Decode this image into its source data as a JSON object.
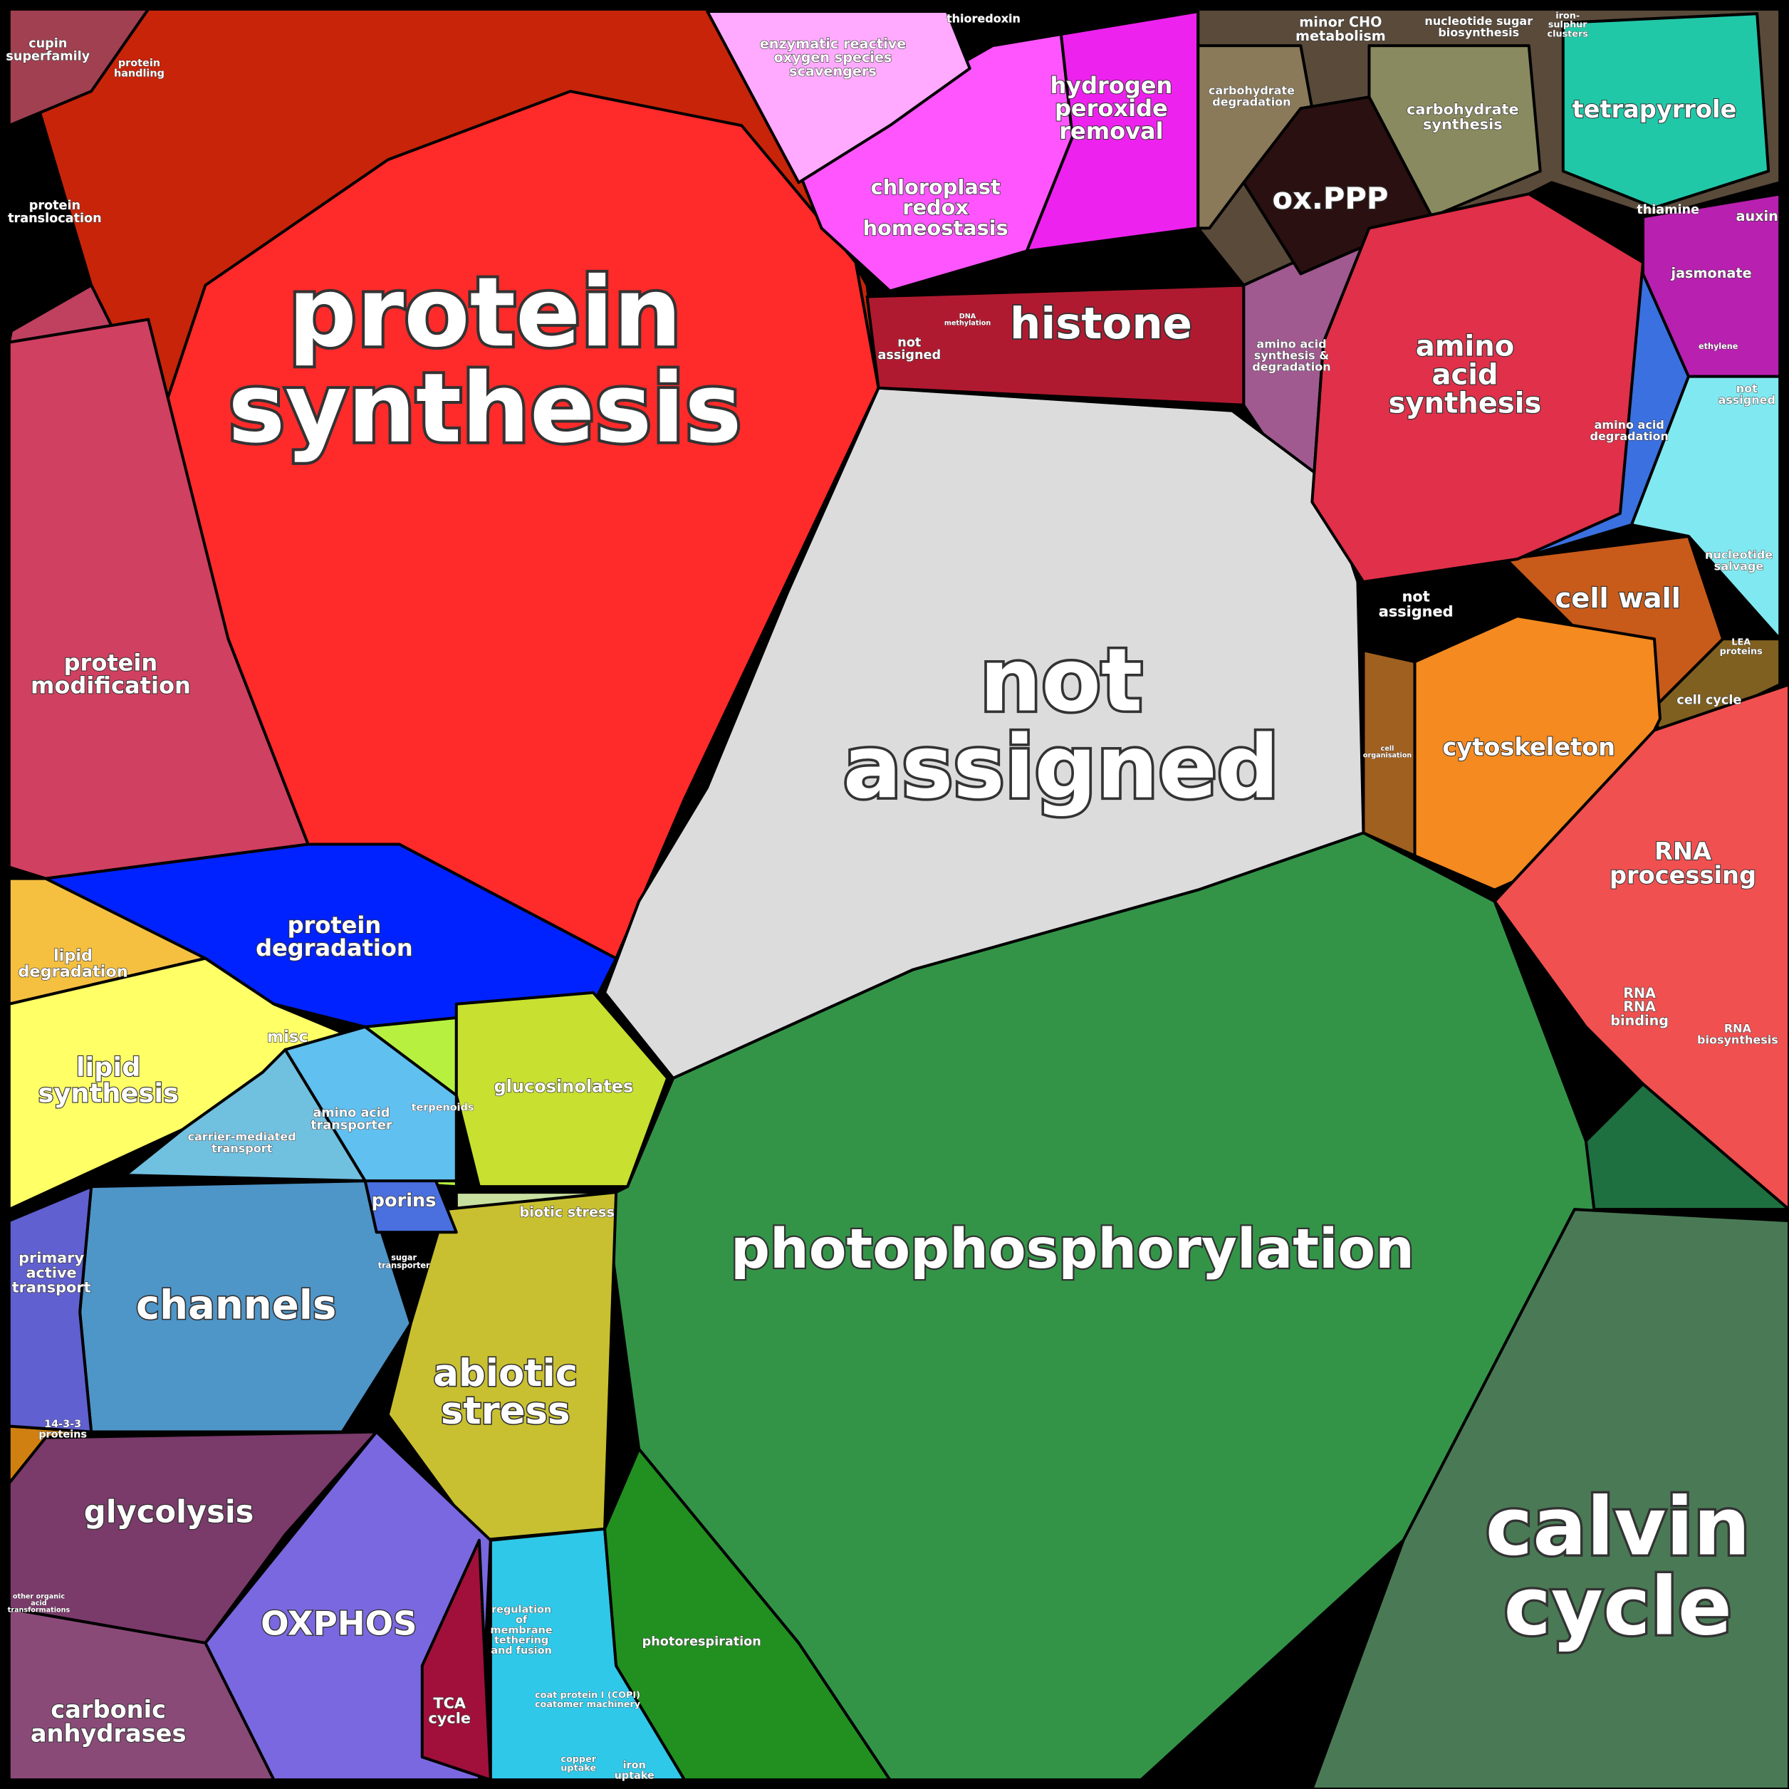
{
  "cells": [
    {
      "label": [
        "protein",
        "synthesis"
      ]
    },
    {
      "label": [
        "not",
        "assigned"
      ]
    },
    {
      "label": [
        "photophosphorylation"
      ]
    },
    {
      "label": [
        "calvin",
        "cycle"
      ]
    },
    {
      "label": [
        "histone"
      ]
    },
    {
      "label": [
        "ox.PPP"
      ]
    },
    {
      "label": [
        "tetrapyrrole"
      ]
    },
    {
      "label": [
        "cell wall"
      ]
    },
    {
      "label": [
        "cytoskeleton"
      ]
    },
    {
      "label": [
        "amino",
        "acid",
        "synthesis"
      ]
    },
    {
      "label": [
        "RNA",
        "processing"
      ]
    },
    {
      "label": [
        "chloroplast",
        "redox",
        "homeostasis"
      ]
    },
    {
      "label": [
        "hydrogen",
        "peroxide",
        "removal"
      ]
    },
    {
      "label": [
        "enzymatic reactive",
        "oxygen species",
        "scavengers"
      ]
    },
    {
      "label": [
        "protein",
        "modification"
      ]
    },
    {
      "label": [
        "protein",
        "degradation"
      ]
    },
    {
      "label": [
        "lipid",
        "degradation"
      ]
    },
    {
      "label": [
        "lipid",
        "synthesis"
      ]
    },
    {
      "label": [
        "channels"
      ]
    },
    {
      "label": [
        "abiotic",
        "stress"
      ]
    },
    {
      "label": [
        "glucosinolates"
      ]
    },
    {
      "label": [
        "glycolysis"
      ]
    },
    {
      "label": [
        "OXPHOS"
      ]
    },
    {
      "label": [
        "carbonic",
        "anhydrases"
      ]
    },
    {
      "label": [
        "photorespiration"
      ]
    },
    {
      "label": [
        "TCA",
        "cycle"
      ]
    },
    {
      "label": [
        "porins"
      ]
    },
    {
      "label": [
        "primary",
        "active",
        "transport"
      ]
    },
    {
      "label": [
        "amino acid",
        "transporter"
      ]
    },
    {
      "label": [
        "carrier-mediated",
        "transport"
      ]
    },
    {
      "label": [
        "misc"
      ]
    },
    {
      "label": [
        "biotic stress"
      ]
    },
    {
      "label": [
        "terpenoids"
      ]
    },
    {
      "label": [
        "thioredoxin"
      ]
    },
    {
      "label": [
        "minor CHO",
        "metabolism"
      ]
    },
    {
      "label": [
        "nucleotide sugar",
        "biosynthesis"
      ]
    },
    {
      "label": [
        "carbohydrate",
        "degradation"
      ]
    },
    {
      "label": [
        "carbohydrate",
        "synthesis"
      ]
    },
    {
      "label": [
        "thiamine"
      ]
    },
    {
      "label": [
        "auxin"
      ]
    },
    {
      "label": [
        "jasmonate"
      ]
    },
    {
      "label": [
        "not",
        "assigned"
      ]
    },
    {
      "label": [
        "amino acid",
        "synthesis &",
        "degradation"
      ]
    },
    {
      "label": [
        "amino acid",
        "degradation"
      ]
    },
    {
      "label": [
        "not",
        "assigned"
      ]
    },
    {
      "label": [
        "nucleotide",
        "salvage"
      ]
    },
    {
      "label": [
        "not",
        "assigned"
      ]
    },
    {
      "label": [
        "cell cycle"
      ]
    },
    {
      "label": [
        "RNA",
        "RNA",
        "binding"
      ]
    },
    {
      "label": [
        "RNA",
        "biosynthesis"
      ]
    },
    {
      "label": [
        "cupin",
        "superfamily"
      ]
    },
    {
      "label": [
        "protein",
        "handling"
      ]
    },
    {
      "label": [
        "protein",
        "translocation"
      ]
    },
    {
      "label": [
        "14-3-3",
        "proteins"
      ]
    },
    {
      "label": [
        "sugar",
        "transporter"
      ]
    },
    {
      "label": [
        "regulation",
        "of",
        "membrane",
        "tethering",
        "and fusion"
      ]
    },
    {
      "label": [
        "coat protein I (COPI)",
        "coatomer machinery"
      ]
    },
    {
      "label": [
        "copper",
        "uptake"
      ]
    },
    {
      "label": [
        "iron",
        "uptake"
      ]
    },
    {
      "label": [
        "iron-",
        "sulphur",
        "clusters"
      ]
    },
    {
      "label": [
        "LEA",
        "proteins"
      ]
    },
    {
      "label": [
        "ethylene"
      ]
    },
    {
      "label": [
        "cell",
        "organisation"
      ]
    },
    {
      "label": [
        "DNA",
        "methylation"
      ]
    },
    {
      "label": [
        "other organic",
        "acid",
        "transformations"
      ]
    }
  ]
}
